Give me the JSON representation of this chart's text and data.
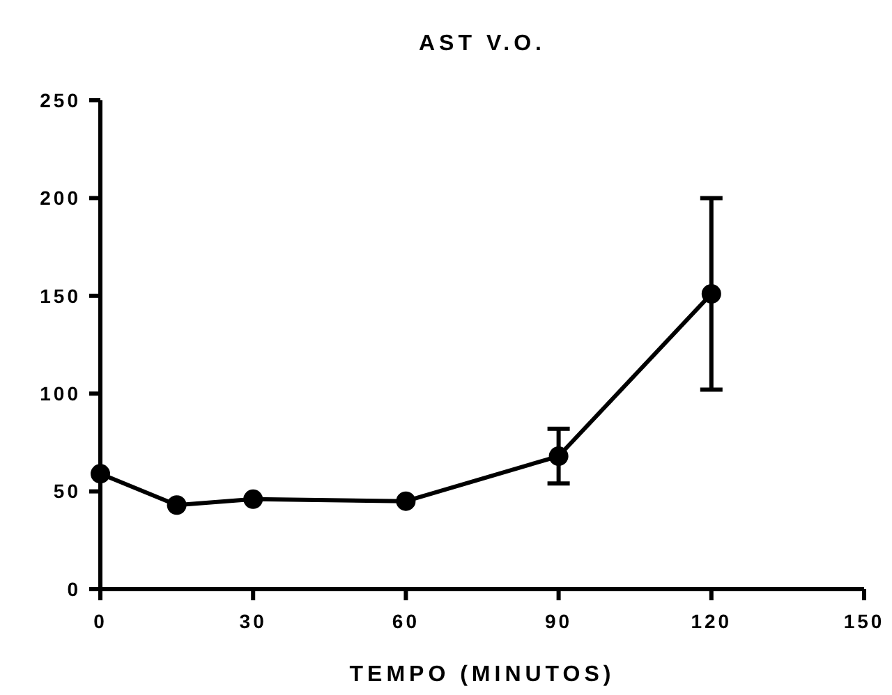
{
  "chart_data": {
    "type": "line",
    "title": "AST V.O.",
    "xlabel": "TEMPO (MINUTOS)",
    "x": [
      0,
      15,
      30,
      60,
      90,
      120
    ],
    "series": [
      {
        "color": "#000000",
        "values": [
          59,
          43,
          46,
          45,
          68,
          151
        ],
        "errors": [
          null,
          null,
          null,
          null,
          [
            54,
            82
          ],
          [
            102,
            200
          ]
        ]
      }
    ],
    "xlim": [
      0,
      150
    ],
    "xticks": [
      0,
      30,
      60,
      90,
      120,
      150
    ],
    "ylim": [
      0,
      250
    ],
    "yticks": [
      0,
      50,
      100,
      150,
      200,
      250
    ],
    "marker": "circle",
    "line_style": "solid",
    "grid": false
  }
}
